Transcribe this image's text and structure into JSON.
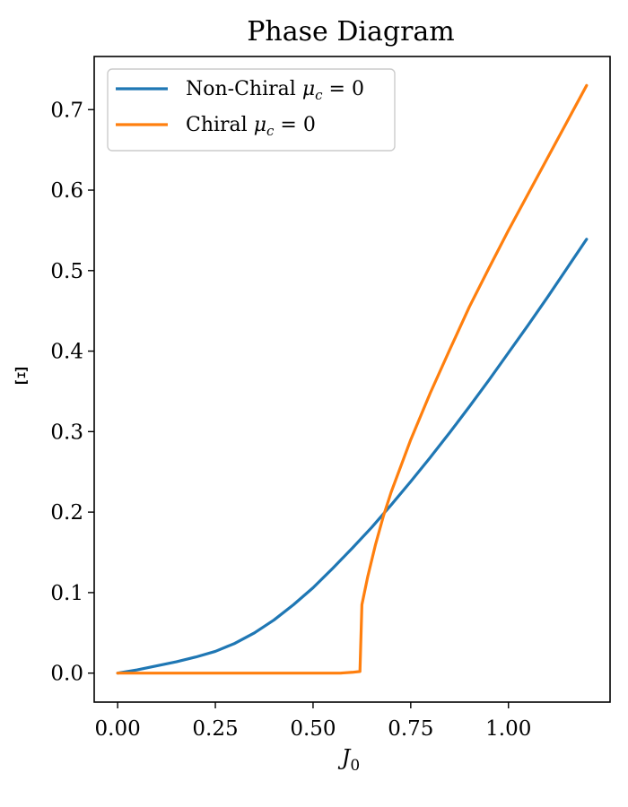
{
  "chart_data": {
    "type": "line",
    "title": "Phase Diagram",
    "xlabel": "J_0",
    "ylabel": "Ξ",
    "xlim": [
      -0.06,
      1.26
    ],
    "ylim": [
      -0.036,
      0.766
    ],
    "xticks": [
      0.0,
      0.25,
      0.5,
      0.75,
      1.0
    ],
    "xtick_labels": [
      "0.00",
      "0.25",
      "0.50",
      "0.75",
      "1.00"
    ],
    "yticks": [
      0.0,
      0.1,
      0.2,
      0.3,
      0.4,
      0.5,
      0.6,
      0.7
    ],
    "ytick_labels": [
      "0.0",
      "0.1",
      "0.2",
      "0.3",
      "0.4",
      "0.5",
      "0.6",
      "0.7"
    ],
    "grid": false,
    "legend_position": "top-left",
    "series": [
      {
        "name": "Non-Chiral μ_c = 0",
        "color": "#1f77b4",
        "x": [
          0.0,
          0.05,
          0.1,
          0.15,
          0.2,
          0.25,
          0.3,
          0.35,
          0.4,
          0.45,
          0.5,
          0.55,
          0.6,
          0.65,
          0.7,
          0.75,
          0.8,
          0.85,
          0.9,
          0.95,
          1.0,
          1.05,
          1.1,
          1.15,
          1.2
        ],
        "y": [
          0.0,
          0.004,
          0.009,
          0.014,
          0.02,
          0.027,
          0.037,
          0.05,
          0.066,
          0.085,
          0.106,
          0.13,
          0.155,
          0.181,
          0.209,
          0.238,
          0.268,
          0.299,
          0.331,
          0.364,
          0.398,
          0.432,
          0.467,
          0.503,
          0.539
        ]
      },
      {
        "name": "Chiral μ_c = 0",
        "color": "#ff7f0e",
        "x": [
          0.0,
          0.1,
          0.2,
          0.3,
          0.4,
          0.5,
          0.57,
          0.6,
          0.62,
          0.625,
          0.64,
          0.66,
          0.68,
          0.7,
          0.75,
          0.8,
          0.85,
          0.9,
          0.95,
          1.0,
          1.05,
          1.1,
          1.15,
          1.2
        ],
        "y": [
          0.0,
          0.0,
          0.0,
          0.0,
          0.0,
          0.0,
          0.0,
          0.001,
          0.002,
          0.085,
          0.12,
          0.16,
          0.195,
          0.225,
          0.29,
          0.348,
          0.402,
          0.455,
          0.503,
          0.55,
          0.595,
          0.64,
          0.685,
          0.73
        ]
      }
    ]
  }
}
